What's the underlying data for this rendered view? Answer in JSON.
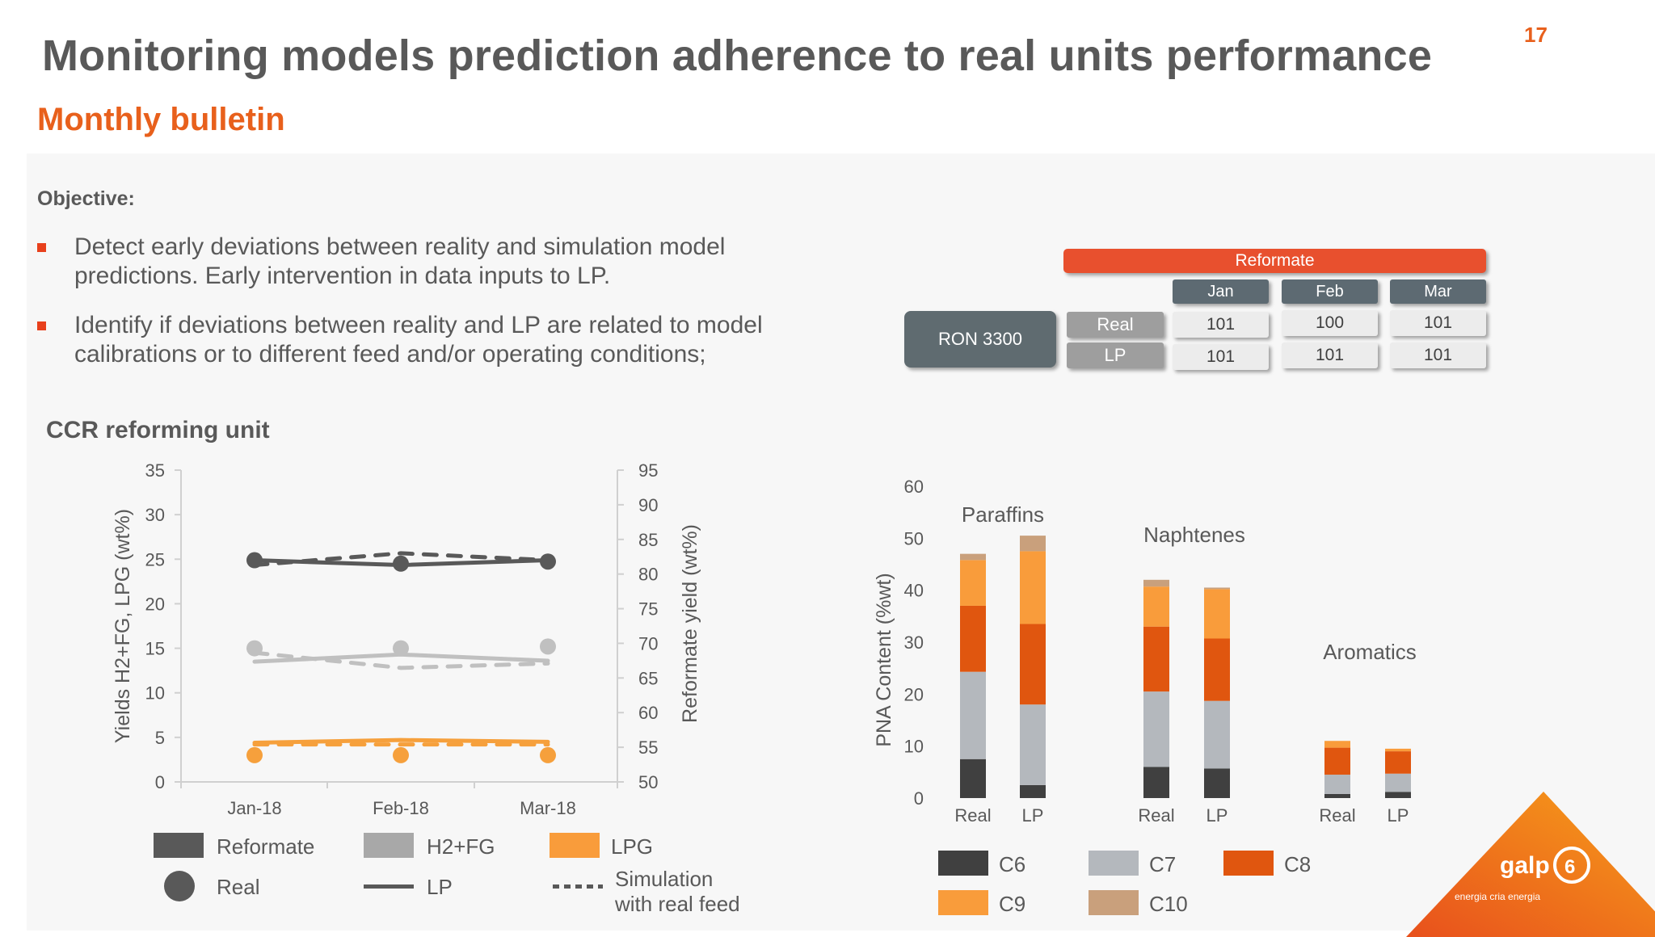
{
  "slide": {
    "title": "Monitoring models prediction adherence to real units performance",
    "number": "17",
    "subtitle": "Monthly bulletin",
    "objective_label": "Objective:",
    "bullets": [
      "Detect early deviations between reality and simulation model predictions. Early intervention in data inputs to LP.",
      "Identify if deviations between reality and LP are related to model calibrations or to different feed and/or operating conditions;"
    ],
    "colors": {
      "accent": "#e8601c",
      "bullet": "#e8401c",
      "title": "#595959"
    }
  },
  "ron_table": {
    "header": "Reformate",
    "months": [
      "Jan",
      "Feb",
      "Mar"
    ],
    "row_title": "RON 3300",
    "rows": [
      {
        "label": "Real",
        "values": [
          "101",
          "100",
          "101"
        ]
      },
      {
        "label": "LP",
        "values": [
          "101",
          "101",
          "101"
        ]
      }
    ],
    "colors": {
      "header": "#e8502e",
      "month": "#5d6a72",
      "row_title": "#5f6b70",
      "row_label": "#9e9e9e",
      "value": "#ececec"
    }
  },
  "ccr_title": "CCR reforming unit",
  "legend_left": {
    "items": [
      "Reformate",
      "H2+FG",
      "LPG"
    ],
    "styles": [
      "Real",
      "LP",
      "Simulation with real feed"
    ],
    "sim_lines": [
      "Simulation",
      "with real feed"
    ]
  },
  "legend_right": {
    "items": [
      "C6",
      "C7",
      "C8",
      "C9",
      "C10"
    ]
  },
  "chart_data": [
    {
      "type": "line",
      "x": [
        "Jan-18",
        "Feb-18",
        "Mar-18"
      ],
      "ylabel": "Yields H2+FG, LPG (wt%)",
      "y2label": "Reformate yield (wt%)",
      "ylim": [
        0,
        35
      ],
      "yticks": [
        0,
        5,
        10,
        15,
        20,
        25,
        30,
        35
      ],
      "y2lim": [
        50,
        95
      ],
      "y2ticks": [
        50,
        55,
        60,
        65,
        70,
        75,
        80,
        85,
        90,
        95
      ],
      "grid": false,
      "series": [
        {
          "name": "Reformate",
          "style": "Real",
          "axis": "right",
          "color": "#595959",
          "values": [
            82,
            81.5,
            81.8
          ]
        },
        {
          "name": "Reformate",
          "style": "LP",
          "axis": "right",
          "color": "#595959",
          "values": [
            82,
            81.3,
            82
          ]
        },
        {
          "name": "Reformate",
          "style": "Simulation with real feed",
          "axis": "right",
          "color": "#595959",
          "values": [
            81.3,
            83,
            82
          ]
        },
        {
          "name": "H2+FG",
          "style": "Real",
          "axis": "left",
          "color": "#c0c0c0",
          "values": [
            15,
            15,
            15.2
          ]
        },
        {
          "name": "H2+FG",
          "style": "LP",
          "axis": "left",
          "color": "#c0c0c0",
          "values": [
            13.5,
            14.3,
            13.6
          ]
        },
        {
          "name": "H2+FG",
          "style": "Simulation with real feed",
          "axis": "left",
          "color": "#c0c0c0",
          "values": [
            14.5,
            12.8,
            13.3
          ]
        },
        {
          "name": "LPG",
          "style": "Real",
          "axis": "left",
          "color": "#f6a03c",
          "values": [
            3,
            3,
            3
          ]
        },
        {
          "name": "LPG",
          "style": "LP",
          "axis": "left",
          "color": "#f6a03c",
          "values": [
            4.4,
            4.7,
            4.5
          ]
        },
        {
          "name": "LPG",
          "style": "Simulation with real feed",
          "axis": "left",
          "color": "#f6a03c",
          "values": [
            4.2,
            4.2,
            4.2
          ]
        }
      ]
    },
    {
      "type": "bar",
      "stacked": true,
      "ylabel": "PNA Content (%wt)",
      "ylim": [
        0,
        60
      ],
      "yticks": [
        0,
        10,
        20,
        30,
        40,
        50,
        60
      ],
      "grid": false,
      "group_labels": [
        "Paraffins",
        "Naphtenes",
        "Aromatics"
      ],
      "categories": [
        "Real",
        "LP",
        "Real",
        "LP",
        "Real",
        "LP"
      ],
      "series": [
        {
          "name": "C6",
          "color": "#404040",
          "values": [
            7.5,
            2.5,
            6,
            5.7,
            0.8,
            1.2
          ]
        },
        {
          "name": "C7",
          "color": "#b4b8bd",
          "values": [
            16.8,
            15.5,
            14.5,
            13,
            3.7,
            3.5
          ]
        },
        {
          "name": "C8",
          "color": "#e0560f",
          "values": [
            12.7,
            15.5,
            12.5,
            12,
            5.2,
            4.3
          ]
        },
        {
          "name": "C9",
          "color": "#f99c3b",
          "values": [
            8.8,
            14,
            7.7,
            9.5,
            1.3,
            0.5
          ]
        },
        {
          "name": "C10",
          "color": "#c9a07c",
          "values": [
            1.2,
            3,
            1.3,
            0.3,
            0,
            0
          ]
        }
      ]
    }
  ]
}
